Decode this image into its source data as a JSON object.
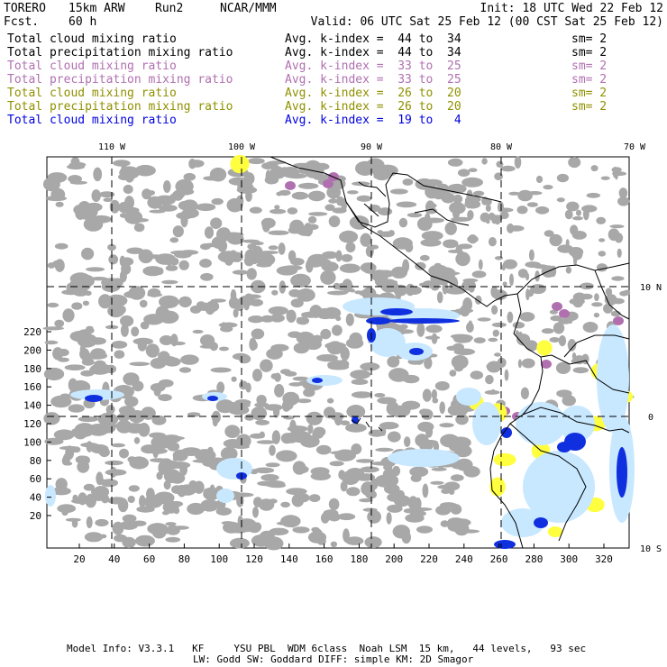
{
  "header": {
    "model": "TORERO",
    "resolution": "15km ARW",
    "run": "Run2",
    "org": "NCAR/MMM",
    "init": "Init: 18 UTC Wed 22 Feb 12",
    "fcst_label": "Fcst.",
    "fcst_value": "60 h",
    "valid": "Valid: 06 UTC Sat 25 Feb 12 (00 CST Sat 25 Feb 12)"
  },
  "fields": [
    {
      "name": "Total cloud mixing ratio",
      "kindex": "Avg. k-index =  44 to  34",
      "sm": "sm= 2",
      "color": "#000000"
    },
    {
      "name": "Total precipitation mixing ratio",
      "kindex": "Avg. k-index =  44 to  34",
      "sm": "sm= 2",
      "color": "#000000"
    },
    {
      "name": "Total cloud mixing ratio",
      "kindex": "Avg. k-index =  33 to  25",
      "sm": "sm= 2",
      "color": "#b070b0"
    },
    {
      "name": "Total precipitation mixing ratio",
      "kindex": "Avg. k-index =  33 to  25",
      "sm": "sm= 2",
      "color": "#b070b0"
    },
    {
      "name": "Total cloud mixing ratio",
      "kindex": "Avg. k-index =  26 to  20",
      "sm": "sm= 2",
      "color": "#909000"
    },
    {
      "name": "Total precipitation mixing ratio",
      "kindex": "Avg. k-index =  26 to  20",
      "sm": "sm= 2",
      "color": "#909000"
    },
    {
      "name": "Total cloud mixing ratio",
      "kindex": "Avg. k-index =  19 to   4",
      "sm": "",
      "color": "#0000e0"
    }
  ],
  "map": {
    "lon_labels": [
      "110 W",
      "100 W",
      "90 W",
      "80 W",
      "70 W"
    ],
    "lat_labels": [
      "10 N",
      "0",
      "10 S"
    ],
    "y_ticks": [
      "20",
      "40",
      "60",
      "80",
      "100",
      "120",
      "140",
      "160",
      "180",
      "200",
      "220"
    ],
    "x_ticks": [
      "20",
      "40",
      "60",
      "80",
      "100",
      "120",
      "140",
      "160",
      "180",
      "200",
      "220",
      "240",
      "260",
      "280",
      "300",
      "320"
    ],
    "colors": {
      "gray": "#a8a8a8",
      "purple": "#b070b0",
      "yellow": "#ffff40",
      "lightblue": "#c8e8ff",
      "blue": "#1030e0"
    }
  },
  "footer": {
    "line1": "Model Info: V3.3.1   KF     YSU PBL  WDM 6class  Noah LSM  15 km,   44 levels,   93 sec",
    "line2": "LW: Godd SW: Goddard DIFF: simple KM: 2D Smagor"
  }
}
